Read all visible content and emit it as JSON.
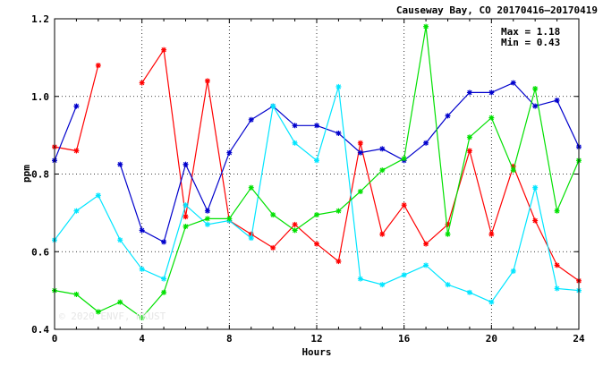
{
  "chart_data": {
    "type": "line",
    "title": "Causeway Bay, CO 20170416–20170419",
    "xlabel": "Hours",
    "ylabel": "ppm",
    "xlim": [
      0,
      24
    ],
    "ylim": [
      0.4,
      1.2
    ],
    "xticks": [
      0,
      4,
      8,
      12,
      16,
      20,
      24
    ],
    "yticks": [
      0.4,
      0.6,
      0.8,
      1.0,
      1.2
    ],
    "ytick_labels": [
      "0.4",
      "0.6",
      "0.8",
      "1.0",
      "1.2"
    ],
    "grid": true,
    "stats": {
      "max": "Max = 1.18",
      "min": "Min = 0.43"
    },
    "watermark": "© 2020 ENVF, HKUST",
    "x": [
      0,
      1,
      2,
      3,
      4,
      5,
      6,
      7,
      8,
      9,
      10,
      11,
      12,
      13,
      14,
      15,
      16,
      17,
      18,
      19,
      20,
      21,
      22,
      23,
      24
    ],
    "series": [
      {
        "color": "#ff0000",
        "values": [
          0.87,
          0.86,
          1.08,
          null,
          1.035,
          1.12,
          0.69,
          1.04,
          0.68,
          0.645,
          0.61,
          0.67,
          0.62,
          0.575,
          0.88,
          0.645,
          0.72,
          0.62,
          0.67,
          0.86,
          0.645,
          0.82,
          0.68,
          0.565,
          0.525
        ]
      },
      {
        "color": "#0000cc",
        "values": [
          0.835,
          0.975,
          null,
          0.825,
          0.655,
          0.625,
          0.825,
          0.705,
          0.855,
          0.94,
          0.975,
          0.925,
          0.925,
          0.905,
          0.855,
          0.865,
          0.835,
          0.88,
          0.95,
          1.01,
          1.01,
          1.035,
          0.975,
          0.99,
          0.87
        ]
      },
      {
        "color": "#00e5ff",
        "values": [
          0.63,
          0.705,
          0.745,
          0.63,
          0.555,
          0.53,
          0.72,
          0.67,
          0.68,
          0.635,
          0.975,
          0.88,
          0.835,
          1.025,
          0.53,
          0.515,
          0.54,
          0.565,
          0.515,
          0.495,
          0.47,
          0.55,
          0.765,
          0.505,
          0.5
        ]
      },
      {
        "color": "#00e000",
        "values": [
          0.5,
          0.49,
          0.445,
          0.47,
          0.43,
          0.495,
          0.665,
          0.685,
          0.685,
          0.765,
          0.695,
          0.655,
          0.695,
          0.705,
          0.755,
          0.81,
          0.84,
          1.18,
          0.645,
          0.895,
          0.945,
          0.81,
          1.02,
          0.705,
          0.835
        ]
      }
    ]
  }
}
